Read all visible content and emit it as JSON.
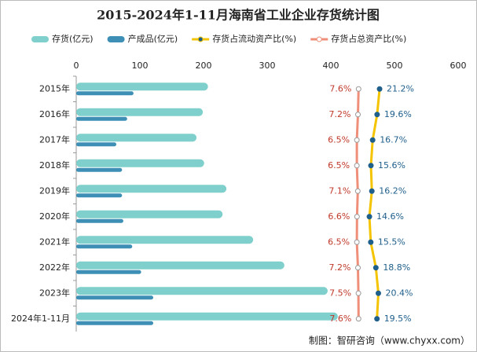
{
  "chart_data": {
    "type": "bar",
    "orientation": "horizontal",
    "title": "2015-2024年1-11月海南省工业企业存货统计图",
    "categories": [
      "2015年",
      "2016年",
      "2017年",
      "2018年",
      "2019年",
      "2020年",
      "2021年",
      "2022年",
      "2023年",
      "2024年1-11月"
    ],
    "xlim": [
      0,
      600
    ],
    "xticks": [
      0,
      100,
      200,
      300,
      400,
      500,
      600
    ],
    "x2lim": [
      -175,
      72
    ],
    "series": [
      {
        "name": "存货(亿元)",
        "type": "bar",
        "color": "#7fd0cc",
        "values": [
          207,
          199,
          189,
          201,
          236,
          230,
          278,
          327,
          395,
          411
        ]
      },
      {
        "name": "产成品(亿元)",
        "type": "bar",
        "color": "#3d8fb5",
        "values": [
          90,
          80,
          63,
          72,
          72,
          74,
          88,
          102,
          121,
          121
        ]
      },
      {
        "name": "存货占流动资产比(%)",
        "type": "line",
        "axis": "x2",
        "color": "#f5c400",
        "marker_color": "#1f5f8b",
        "label_color": "#1f5f8b",
        "values": [
          21.2,
          19.6,
          16.7,
          15.6,
          16.2,
          14.6,
          15.5,
          18.8,
          20.4,
          19.5
        ],
        "value_labels": [
          "21.2%",
          "19.6%",
          "16.7%",
          "15.6%",
          "16.2%",
          "14.6%",
          "15.5%",
          "18.8%",
          "20.4%",
          "19.5%"
        ]
      },
      {
        "name": "存货占总资产比(%)",
        "type": "line",
        "axis": "x2",
        "color": "#ef8f7a",
        "marker_color": "#ffffff",
        "label_color": "#c0392b",
        "values": [
          7.6,
          7.2,
          6.5,
          6.5,
          7.1,
          6.6,
          6.5,
          7.2,
          7.5,
          7.6
        ],
        "value_labels": [
          "7.6%",
          "7.2%",
          "6.5%",
          "6.5%",
          "7.1%",
          "6.6%",
          "6.5%",
          "7.2%",
          "7.5%",
          "7.6%"
        ]
      }
    ],
    "source": "制图：智研咨询（www.chyxx.com）"
  }
}
